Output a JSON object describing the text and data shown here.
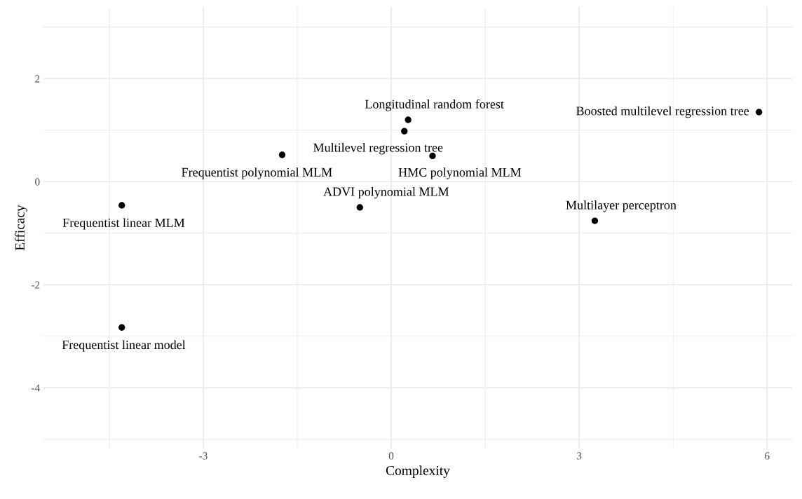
{
  "chart_data": {
    "type": "scatter",
    "xlabel": "Complexity",
    "ylabel": "Efficacy",
    "x": [
      -4.3,
      -4.3,
      -1.74,
      -0.5,
      0.21,
      0.27,
      0.66,
      3.25,
      5.87
    ],
    "series": [
      {
        "color": "#000000",
        "values": [
          -0.46,
          -2.83,
          0.52,
          -0.5,
          0.98,
          1.2,
          0.5,
          -0.76,
          1.35
        ]
      }
    ],
    "annotations": [
      {
        "text": "Frequentist linear MLM",
        "x": -4.3,
        "y": -0.46
      },
      {
        "text": "Frequentist linear model",
        "x": -4.3,
        "y": -2.83
      },
      {
        "text": "Frequentist polynomial MLM",
        "x": -1.74,
        "y": 0.52
      },
      {
        "text": "ADVI polynomial MLM",
        "x": -0.5,
        "y": -0.5
      },
      {
        "text": "Multilevel regression tree",
        "x": 0.21,
        "y": 0.98
      },
      {
        "text": "Longitudinal random forest",
        "x": 0.27,
        "y": 1.2
      },
      {
        "text": "HMC polynomial MLM",
        "x": 0.66,
        "y": 0.5
      },
      {
        "text": "Multilayer perceptron",
        "x": 3.25,
        "y": -0.76
      },
      {
        "text": "Boosted multilevel regression tree",
        "x": 5.87,
        "y": 1.35
      }
    ],
    "xlim": [
      -5.55,
      6.4
    ],
    "ylim": [
      -5.18,
      3.39
    ],
    "xticks": [
      {
        "value": -4.5,
        "label": null
      },
      -3,
      {
        "value": -1.5,
        "label": null
      },
      0,
      {
        "value": 1.5,
        "label": null
      },
      3,
      {
        "value": 4.5,
        "label": null
      },
      6
    ],
    "yticks": [
      {
        "value": -5,
        "label": null
      },
      -4,
      {
        "value": -3,
        "label": null
      },
      -2,
      {
        "value": -1,
        "label": null
      },
      0,
      {
        "value": 1,
        "label": null
      },
      2,
      {
        "value": 3,
        "label": null
      }
    ],
    "grid": true,
    "marker": "circle"
  }
}
